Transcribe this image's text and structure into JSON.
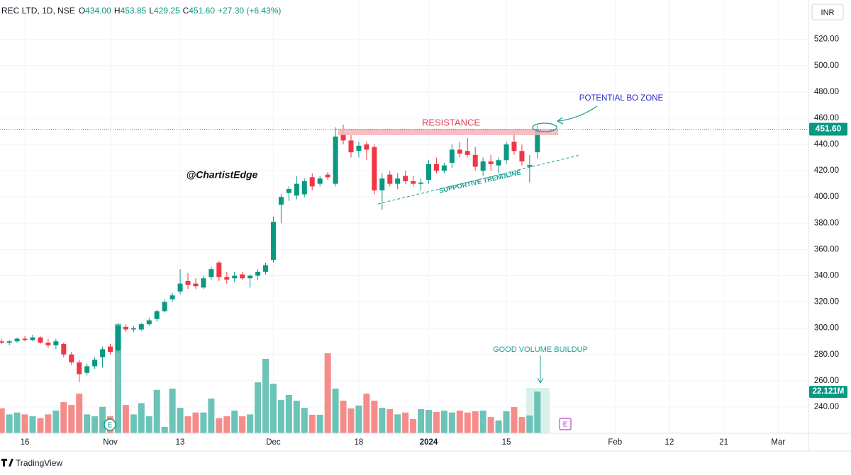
{
  "chart_data": {
    "type": "candlestick",
    "header": {
      "symbol": "REC LTD, 1D, NSE",
      "items": [
        {
          "key": "O",
          "value": "434.00"
        },
        {
          "key": "H",
          "value": "453.85"
        },
        {
          "key": "L",
          "value": "429.25"
        },
        {
          "key": "C",
          "value": "451.60"
        }
      ],
      "change": "+27.30 (+6.43%)"
    },
    "currency": "INR",
    "up_color": "#089981",
    "down_color": "#f23645",
    "volume_up_color": "#6cc3b8",
    "volume_down_color": "#f58c8a",
    "ylim": [
      220,
      550
    ],
    "yticks": [
      {
        "value": 240,
        "label": "240.00"
      },
      {
        "value": 260,
        "label": "260.00"
      },
      {
        "value": 280,
        "label": "280.00"
      },
      {
        "value": 300,
        "label": "300.00"
      },
      {
        "value": 320,
        "label": "320.00"
      },
      {
        "value": 340,
        "label": "340.00"
      },
      {
        "value": 360,
        "label": "360.00"
      },
      {
        "value": 380,
        "label": "380.00"
      },
      {
        "value": 400,
        "label": "400.00"
      },
      {
        "value": 420,
        "label": "420.00"
      },
      {
        "value": 440,
        "label": "440.00"
      },
      {
        "value": 460,
        "label": "460.00"
      },
      {
        "value": 480,
        "label": "480.00"
      },
      {
        "value": 500,
        "label": "500.00"
      },
      {
        "value": 520,
        "label": "520.00"
      }
    ],
    "y2lim": [
      0,
      230
    ],
    "xlim": [
      -0.2,
      103.9
    ],
    "xticks": [
      {
        "value": 3,
        "label": "16"
      },
      {
        "value": 14,
        "label": "Nov"
      },
      {
        "value": 23,
        "label": "13"
      },
      {
        "value": 35,
        "label": "Dec"
      },
      {
        "value": 46,
        "label": "18"
      },
      {
        "value": 55,
        "label": "2024"
      },
      {
        "value": 65,
        "label": "15"
      },
      {
        "value": 79,
        "label": "Feb"
      },
      {
        "value": 86,
        "label": "12"
      },
      {
        "value": 93,
        "label": "21"
      },
      {
        "value": 100,
        "label": "Mar"
      }
    ],
    "last_price": {
      "value": 451.6,
      "label": "451.60"
    },
    "last_volume": {
      "value": 22.121,
      "label": "22.121M"
    },
    "ohlc": [
      [
        290,
        292,
        288,
        289
      ],
      [
        289,
        291,
        287,
        290
      ],
      [
        290,
        293,
        289,
        292
      ],
      [
        292,
        294,
        290,
        291
      ],
      [
        291,
        295,
        290,
        293
      ],
      [
        293,
        294,
        288,
        289
      ],
      [
        289,
        292,
        285,
        287
      ],
      [
        287,
        292,
        284,
        290
      ],
      [
        288,
        289,
        278,
        280
      ],
      [
        280,
        282,
        272,
        274
      ],
      [
        274,
        276,
        259,
        265
      ],
      [
        266,
        273,
        264,
        271
      ],
      [
        271,
        278,
        269,
        276
      ],
      [
        278,
        286,
        270,
        284
      ],
      [
        286,
        288,
        280,
        282
      ],
      [
        283,
        304,
        281,
        302
      ],
      [
        301,
        303,
        297,
        299
      ],
      [
        299,
        302,
        297,
        300
      ],
      [
        299,
        304,
        298,
        303
      ],
      [
        303,
        308,
        302,
        306
      ],
      [
        307,
        314,
        305,
        313
      ],
      [
        313,
        322,
        312,
        320
      ],
      [
        322,
        327,
        320,
        325
      ],
      [
        328,
        345,
        326,
        334
      ],
      [
        336,
        342,
        330,
        333
      ],
      [
        334,
        338,
        330,
        332
      ],
      [
        331,
        340,
        330,
        338
      ],
      [
        339,
        347,
        337,
        345
      ],
      [
        350,
        351,
        336,
        339
      ],
      [
        339,
        343,
        334,
        337
      ],
      [
        338,
        343,
        335,
        340
      ],
      [
        341,
        343,
        337,
        338
      ],
      [
        338,
        341,
        331,
        340
      ],
      [
        340,
        345,
        337,
        343
      ],
      [
        343,
        350,
        341,
        348
      ],
      [
        352,
        385,
        350,
        381
      ],
      [
        394,
        402,
        380,
        400
      ],
      [
        403,
        408,
        397,
        406
      ],
      [
        401,
        416,
        398,
        410
      ],
      [
        402,
        414,
        400,
        412
      ],
      [
        415,
        418,
        405,
        408
      ],
      [
        410,
        416,
        408,
        414
      ],
      [
        417,
        419,
        413,
        415
      ],
      [
        410,
        453,
        408,
        446
      ],
      [
        448,
        455,
        440,
        443
      ],
      [
        443,
        447,
        430,
        434
      ],
      [
        435,
        442,
        430,
        439
      ],
      [
        440,
        442,
        428,
        436
      ],
      [
        438,
        440,
        402,
        405
      ],
      [
        405,
        418,
        390,
        414
      ],
      [
        417,
        420,
        408,
        410
      ],
      [
        410,
        418,
        406,
        414
      ],
      [
        416,
        420,
        410,
        412
      ],
      [
        412,
        416,
        408,
        410
      ],
      [
        410,
        414,
        405,
        411
      ],
      [
        413,
        428,
        410,
        425
      ],
      [
        425,
        430,
        418,
        420
      ],
      [
        420,
        426,
        418,
        424
      ],
      [
        426,
        440,
        422,
        436
      ],
      [
        436,
        442,
        430,
        433
      ],
      [
        435,
        445,
        430,
        432
      ],
      [
        432,
        438,
        420,
        423
      ],
      [
        420,
        430,
        416,
        427
      ],
      [
        427,
        432,
        420,
        425
      ],
      [
        424,
        430,
        418,
        428
      ],
      [
        428,
        442,
        425,
        440
      ],
      [
        442,
        449,
        432,
        435
      ],
      [
        435,
        440,
        424,
        427
      ],
      [
        423,
        432,
        411,
        424.3
      ],
      [
        434,
        453.85,
        429.25,
        451.6
      ]
    ],
    "volume": [
      13.2,
      10,
      11,
      10,
      9,
      8,
      10,
      12,
      16.5,
      15,
      21,
      10,
      9,
      14,
      9,
      58,
      15,
      10,
      16,
      9,
      23,
      3.4,
      23.7,
      13.5,
      9,
      11,
      11,
      18.4,
      8,
      9,
      12,
      9,
      10,
      27,
      39.5,
      26.3,
      17.7,
      20.3,
      17.3,
      13.5,
      9.8,
      9.8,
      42.5,
      23.7,
      17.3,
      13.2,
      14.7,
      21,
      17.3,
      13.5,
      12.8,
      10,
      11,
      7.5,
      12.8,
      12.4,
      11.3,
      12,
      11,
      12,
      11,
      11.7,
      12,
      8.6,
      6.8,
      11.7,
      13.9,
      8.6,
      9.4,
      22.121
    ],
    "annotations": {
      "resistance": "RESISTANCE",
      "breakout": "POTENTIAL BO ZONE",
      "watermark": "@ChartistEdge",
      "trendline": "SUPPORTIVE TRENDLINE",
      "volume": "GOOD VOLUME BUILDUP"
    },
    "earnings": [
      "E",
      "E"
    ],
    "brand": "TradingView"
  }
}
